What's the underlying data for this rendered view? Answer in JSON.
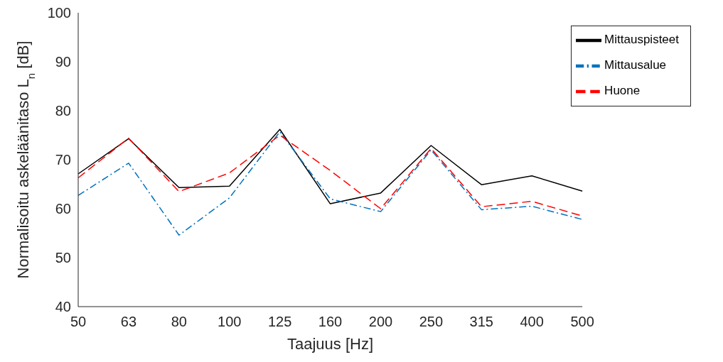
{
  "chart_data": {
    "type": "line",
    "xlabel": "Taajuus [Hz]",
    "ylabel": "Normalisoitu askeläänitaso L$_{n}$ [dB]",
    "categories": [
      "50",
      "63",
      "80",
      "100",
      "125",
      "160",
      "200",
      "250",
      "315",
      "400",
      "500"
    ],
    "series": [
      {
        "name": "Mittauspisteet",
        "color": "#000000",
        "line_style": "solid",
        "values": [
          67.1,
          74.3,
          64.3,
          64.6,
          76.2,
          61.0,
          63.2,
          72.9,
          64.9,
          66.7,
          63.6
        ]
      },
      {
        "name": "Mittausalue",
        "color": "#0072bd",
        "line_style": "dashdot",
        "values": [
          62.7,
          69.3,
          54.6,
          62.2,
          75.7,
          62.0,
          59.4,
          72.0,
          59.8,
          60.5,
          57.8
        ]
      },
      {
        "name": "Huone",
        "color": "#ff0000",
        "line_style": "dashed",
        "values": [
          66.3,
          74.4,
          63.5,
          67.3,
          75.0,
          67.8,
          60.0,
          72.3,
          60.4,
          61.5,
          58.5
        ]
      }
    ],
    "ylim": [
      40,
      100
    ],
    "yticks": [
      40,
      50,
      60,
      70,
      80,
      90,
      100
    ],
    "grid": false,
    "legend": "top right",
    "marker": "none"
  }
}
